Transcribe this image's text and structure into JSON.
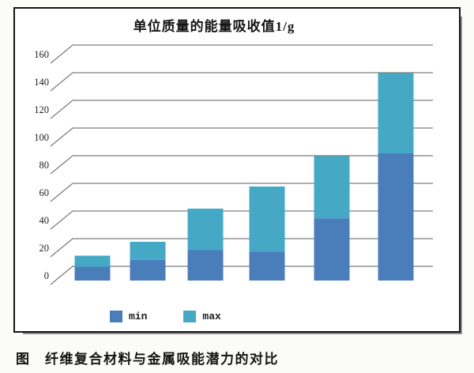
{
  "figure": {
    "caption": "图　纤维复合材料与金属吸能潜力的对比"
  },
  "chart_data": {
    "type": "bar",
    "subtype": "stacked-range-3d",
    "title": "单位质量的能量吸收值1/g",
    "series": [
      {
        "name": "min",
        "color": "#4a7ebb",
        "values": [
          10,
          15,
          22,
          21,
          45,
          92
        ]
      },
      {
        "name": "max",
        "color": "#45a9c5",
        "values": [
          18,
          28,
          52,
          68,
          90,
          150
        ]
      }
    ],
    "ylim": [
      0,
      160
    ],
    "ytick_interval": 20,
    "yticks": [
      160,
      140,
      120,
      100,
      80,
      60,
      40,
      20,
      0
    ],
    "xlabel": "",
    "ylabel": "",
    "grid": true,
    "gridline_color": "#7d7d7d",
    "legend_position": "bottom"
  }
}
